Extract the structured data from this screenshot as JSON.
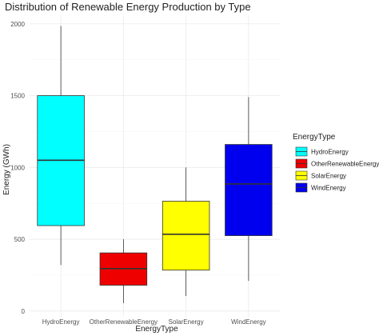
{
  "chart_data": {
    "type": "box",
    "title": "Distribution of Renewable Energy Production by Type",
    "xlabel": "EnergyType",
    "ylabel": "Energy (GWh)",
    "ylim": [
      -40,
      2060
    ],
    "yticks": [
      0,
      500,
      1000,
      1500,
      2000
    ],
    "ytick_labels": [
      "0",
      "500",
      "1000",
      "1500",
      "2000"
    ],
    "grid": true,
    "legend": {
      "title": "EnergyType",
      "placement": "right",
      "entries": [
        "HydroEnergy",
        "OtherRenewableEnergy",
        "SolarEnergy",
        "WindEnergy"
      ]
    },
    "categories": [
      "HydroEnergy",
      "OtherRenewableEnergy",
      "SolarEnergy",
      "WindEnergy"
    ],
    "boxes": [
      {
        "name": "HydroEnergy",
        "min": 320,
        "q1": 595,
        "median": 1050,
        "q3": 1500,
        "max": 1985,
        "color": "#00FFFF"
      },
      {
        "name": "OtherRenewableEnergy",
        "min": 55,
        "q1": 180,
        "median": 295,
        "q3": 405,
        "max": 500,
        "color": "#EE0000"
      },
      {
        "name": "SolarEnergy",
        "min": 105,
        "q1": 285,
        "median": 535,
        "q3": 765,
        "max": 1000,
        "color": "#FFFF00"
      },
      {
        "name": "WindEnergy",
        "min": 210,
        "q1": 525,
        "median": 885,
        "q3": 1160,
        "max": 1490,
        "color": "#0000EE"
      }
    ]
  }
}
